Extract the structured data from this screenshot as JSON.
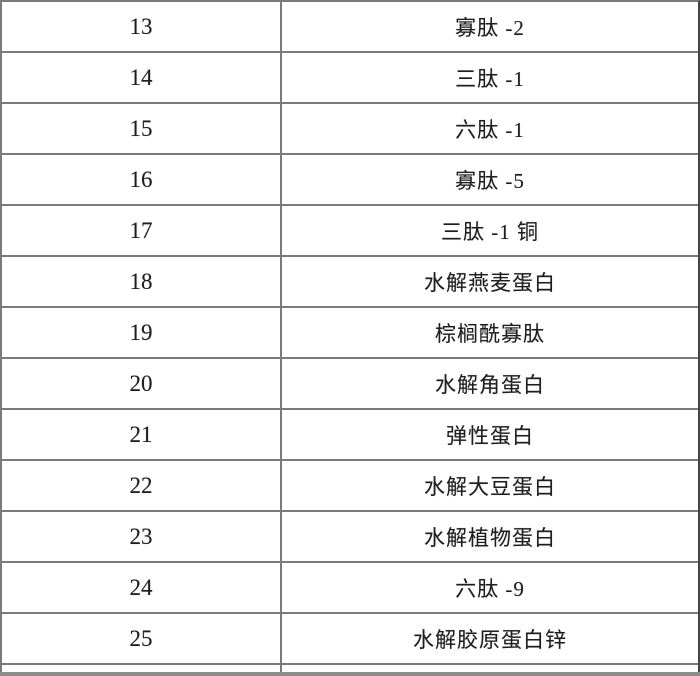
{
  "colors": {
    "grid_line": "#7a7a7a",
    "outer_right_border": "#454545",
    "text": "#1e1e1e",
    "bottom_bar": "#8d8d8d",
    "background": "#ffffff"
  },
  "table": {
    "rows": [
      {
        "no": "13",
        "name": "寡肽 -2"
      },
      {
        "no": "14",
        "name": "三肽 -1"
      },
      {
        "no": "15",
        "name": "六肽 -1"
      },
      {
        "no": "16",
        "name": "寡肽 -5"
      },
      {
        "no": "17",
        "name": "三肽 -1 铜"
      },
      {
        "no": "18",
        "name": "水解燕麦蛋白"
      },
      {
        "no": "19",
        "name": "棕榈酰寡肽"
      },
      {
        "no": "20",
        "name": "水解角蛋白"
      },
      {
        "no": "21",
        "name": "弹性蛋白"
      },
      {
        "no": "22",
        "name": "水解大豆蛋白"
      },
      {
        "no": "23",
        "name": "水解植物蛋白"
      },
      {
        "no": "24",
        "name": "六肽 -9"
      },
      {
        "no": "25",
        "name": "水解胶原蛋白锌"
      }
    ]
  }
}
